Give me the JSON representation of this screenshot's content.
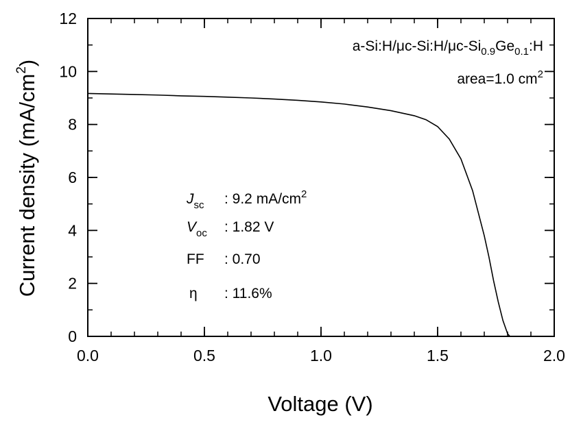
{
  "chart_data": {
    "type": "line",
    "title": "",
    "xlabel": "Voltage (V)",
    "ylabel": "Current density (mA/cm²)",
    "ylabel_parts": {
      "main": "Current density (mA/cm",
      "sup": "2",
      "close": ")"
    },
    "xlim": [
      0.0,
      2.0
    ],
    "ylim": [
      0,
      12
    ],
    "x_ticks": [
      "0.0",
      "0.5",
      "1.0",
      "1.5",
      "2.0"
    ],
    "x_minor_step": 0.1,
    "y_ticks": [
      "0",
      "2",
      "4",
      "6",
      "8",
      "10",
      "12"
    ],
    "y_minor_step": 1,
    "grid": false,
    "legend": "none",
    "series": [
      {
        "color": "#000000",
        "x": [
          0.0,
          0.1,
          0.2,
          0.3,
          0.4,
          0.5,
          0.6,
          0.7,
          0.8,
          0.9,
          1.0,
          1.1,
          1.2,
          1.3,
          1.4,
          1.45,
          1.5,
          1.55,
          1.6,
          1.65,
          1.7,
          1.72,
          1.74,
          1.76,
          1.78,
          1.8,
          1.81
        ],
        "y": [
          9.17,
          9.15,
          9.13,
          9.11,
          9.08,
          9.06,
          9.03,
          9.0,
          8.96,
          8.91,
          8.85,
          8.77,
          8.66,
          8.52,
          8.33,
          8.18,
          7.92,
          7.45,
          6.7,
          5.5,
          3.8,
          3.0,
          2.1,
          1.3,
          0.6,
          0.1,
          0.0
        ]
      }
    ],
    "annotations": {
      "device": {
        "prefix": "a-Si:H/μc-Si:H/μc-Si",
        "sub1": "0.9",
        "mid": "Ge",
        "sub2": "0.1",
        "suffix": ":H"
      },
      "area": {
        "text": "area=1.0 cm",
        "sup": "2"
      },
      "params": [
        {
          "sym": "J",
          "sub": "sc",
          "value": ": 9.2 mA/cm",
          "sup": "2"
        },
        {
          "sym": "V",
          "sub": "oc",
          "value": ": 1.82 V",
          "sup": ""
        },
        {
          "sym": "FF",
          "sub": "",
          "value": ": 0.70",
          "sup": ""
        },
        {
          "sym": "η",
          "sub": "",
          "value": ": 11.6%",
          "sup": ""
        }
      ]
    }
  }
}
